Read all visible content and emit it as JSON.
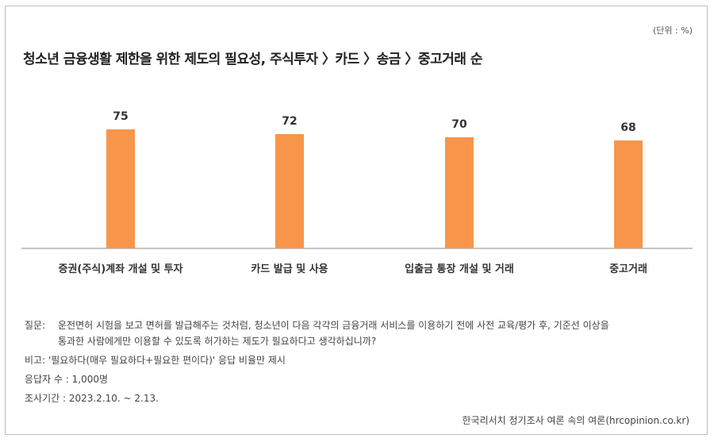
{
  "unit": "(단위 : %)",
  "title": "청소년 금융생활 제한을 위한 제도의 필요성, 주식투자 〉카드 〉송금 〉중고거래 순",
  "chart_data": {
    "type": "bar",
    "categories": [
      "증권(주식)계좌 개설 및 투자",
      "카드 발급 및 사용",
      "입출금 통장 개설 및 거래",
      "중고거래"
    ],
    "values": [
      75,
      72,
      70,
      68
    ],
    "data_labels": [
      "75",
      "72",
      "70",
      "68"
    ],
    "ylim": [
      0,
      100
    ],
    "grid": false,
    "bar_color": "#f7964a"
  },
  "notes": {
    "question_label": "질문:",
    "question_line1": "운전면허 시험을 보고 면허를 발급해주는 것처럼, 청소년이 다음 각각의 금융거래 서비스를 이용하기 전에 사전 교육/평가 후, 기준선 이상을",
    "question_line2": "통과한 사람에게만 이용할 수 있도록 허가하는 제도가 필요하다고 생각하십니까?",
    "remark": "비고: '필요하다(매우 필요하다+필요한 편이다)' 응답 비율만 제시",
    "respondents": "응답자 수 : 1,000명",
    "period": "조사기간 : 2023.2.10. ~ 2.13."
  },
  "source": "한국리서치 정기조사 여론 속의 여론(hrcopinion.co.kr)"
}
